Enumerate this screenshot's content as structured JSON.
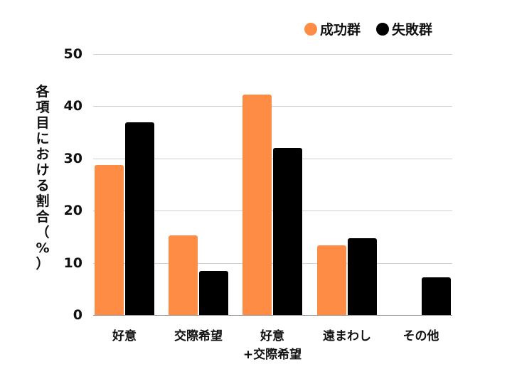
{
  "chart_data": {
    "type": "bar",
    "title": "",
    "xlabel": "",
    "ylabel": "各項目における割合（%）",
    "ylim": [
      0,
      50
    ],
    "yticks": [
      0,
      10,
      20,
      30,
      40,
      50
    ],
    "grid": true,
    "legend_position": "top-right",
    "categories": [
      "好意",
      "交際希望",
      "好意\n+交際希望",
      "遠まわし",
      "その他"
    ],
    "category_lines": [
      [
        "好意"
      ],
      [
        "交際希望"
      ],
      [
        "好意",
        "+交際希望"
      ],
      [
        "遠まわし"
      ],
      [
        "その他"
      ]
    ],
    "series": [
      {
        "name": "成功群",
        "color": "#FF8C45",
        "values": [
          28.7,
          15.3,
          42.2,
          13.4,
          0
        ]
      },
      {
        "name": "失敗群",
        "color": "#000000",
        "values": [
          36.9,
          8.4,
          32.0,
          14.7,
          7.2
        ]
      }
    ]
  },
  "legend": {
    "items": [
      {
        "label": "成功群",
        "color": "#FF8C45"
      },
      {
        "label": "失敗群",
        "color": "#000000"
      }
    ]
  },
  "axis": {
    "ylabel_chars": [
      "各",
      "項",
      "目",
      "に",
      "お",
      "け",
      "る",
      "割",
      "合",
      "（",
      "%",
      "）"
    ],
    "yticks": [
      "0",
      "10",
      "20",
      "30",
      "40",
      "50"
    ]
  }
}
